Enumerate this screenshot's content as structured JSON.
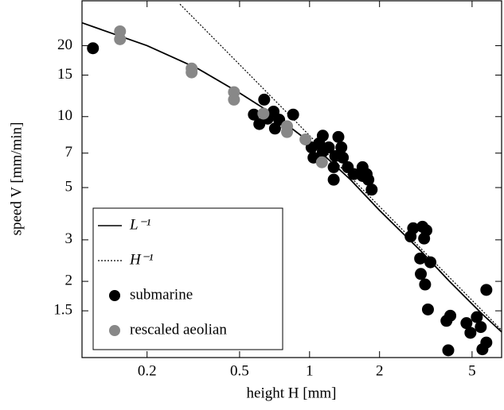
{
  "chart_data": {
    "type": "scatter",
    "xlabel": "height H [mm]",
    "ylabel": "speed V [mm/min]",
    "xscale": "log",
    "yscale": "log",
    "xlim": [
      0.105,
      6.7
    ],
    "ylim": [
      0.95,
      31
    ],
    "xticks": [
      0.2,
      0.5,
      1,
      2,
      5
    ],
    "yticks": [
      1.5,
      2,
      3,
      5,
      7,
      10,
      15,
      20
    ],
    "legend": "lower left",
    "series": [
      {
        "name": "L⁻¹",
        "kind": "line",
        "style": "solid",
        "color": "#000000",
        "x": [
          0.105,
          0.2,
          0.33,
          0.5,
          0.7,
          1,
          1.5,
          2,
          3,
          4,
          5.5,
          6.7
        ],
        "values": [
          25,
          20,
          16,
          12.6,
          10.2,
          7.8,
          5.4,
          4.0,
          2.7,
          2.0,
          1.46,
          1.22
        ]
      },
      {
        "name": "H⁻¹",
        "kind": "line",
        "style": "dotted",
        "color": "#000000",
        "x": [
          0.277,
          6.7
        ],
        "values": [
          30,
          1.24
        ]
      },
      {
        "name": "submarine",
        "kind": "points",
        "color": "#000000",
        "x": [
          0.117,
          0.638,
          0.576,
          0.608,
          0.66,
          0.7,
          0.71,
          0.74,
          0.85,
          1.02,
          1.04,
          1.1,
          1.14,
          1.14,
          1.21,
          1.27,
          1.27,
          1.29,
          1.33,
          1.37,
          1.39,
          1.46,
          1.55,
          1.69,
          1.69,
          1.79,
          1.85,
          1.76,
          2.79,
          2.72,
          3.06,
          3.11,
          3.18,
          2.99,
          3.31,
          3.01,
          3.14,
          3.23,
          3.88,
          4.03,
          3.95,
          4.73,
          4.92,
          5.24,
          5.45,
          5.54,
          5.76,
          5.76
        ],
        "values": [
          19.5,
          11.8,
          10.2,
          9.3,
          9.8,
          10.5,
          8.9,
          9.7,
          10.2,
          7.4,
          6.7,
          7.7,
          7.1,
          8.3,
          7.4,
          6.1,
          5.4,
          6.8,
          8.2,
          7.4,
          6.7,
          6.1,
          5.7,
          5.6,
          6.1,
          5.4,
          4.9,
          5.7,
          3.36,
          3.1,
          3.41,
          3.04,
          3.29,
          2.5,
          2.41,
          2.15,
          1.94,
          1.52,
          1.36,
          1.43,
          1.02,
          1.33,
          1.21,
          1.41,
          1.28,
          1.03,
          1.1,
          1.84
        ]
      },
      {
        "name": "rescaled aeolian",
        "kind": "points",
        "color": "#888888",
        "x": [
          0.153,
          0.153,
          0.311,
          0.311,
          0.473,
          0.473,
          0.633,
          0.8,
          0.8,
          0.96,
          1.13
        ],
        "values": [
          23.0,
          21.3,
          16.0,
          15.4,
          12.7,
          11.8,
          10.3,
          9.1,
          8.6,
          8.0,
          6.4
        ]
      }
    ]
  }
}
